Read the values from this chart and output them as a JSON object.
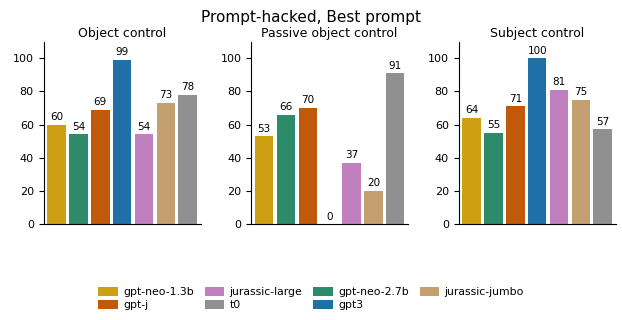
{
  "title": "Prompt-hacked, Best prompt",
  "groups": [
    "Object control",
    "Passive object control",
    "Subject control"
  ],
  "models": [
    "gpt-neo-1.3b",
    "gpt-neo-2.7b",
    "gpt-j",
    "gpt3",
    "jurassic-large",
    "jurassic-jumbo",
    "t0"
  ],
  "colors": [
    "#CDA014",
    "#2E8B6A",
    "#C05A0A",
    "#2070A8",
    "#C080C0",
    "#C4A070",
    "#909090"
  ],
  "values": {
    "Object control": [
      60,
      54,
      69,
      99,
      54,
      73,
      78
    ],
    "Passive object control": [
      53,
      66,
      70,
      0,
      37,
      20,
      91
    ],
    "Subject control": [
      64,
      55,
      71,
      100,
      81,
      75,
      57
    ]
  },
  "ylim": [
    0,
    110
  ],
  "yticks": [
    0,
    20,
    40,
    60,
    80,
    100
  ],
  "bar_width": 0.85,
  "legend_order": [
    0,
    2,
    4,
    6,
    1,
    3,
    5
  ],
  "label_fontsize": 7.5,
  "title_fontsize": 11,
  "group_title_fontsize": 9
}
